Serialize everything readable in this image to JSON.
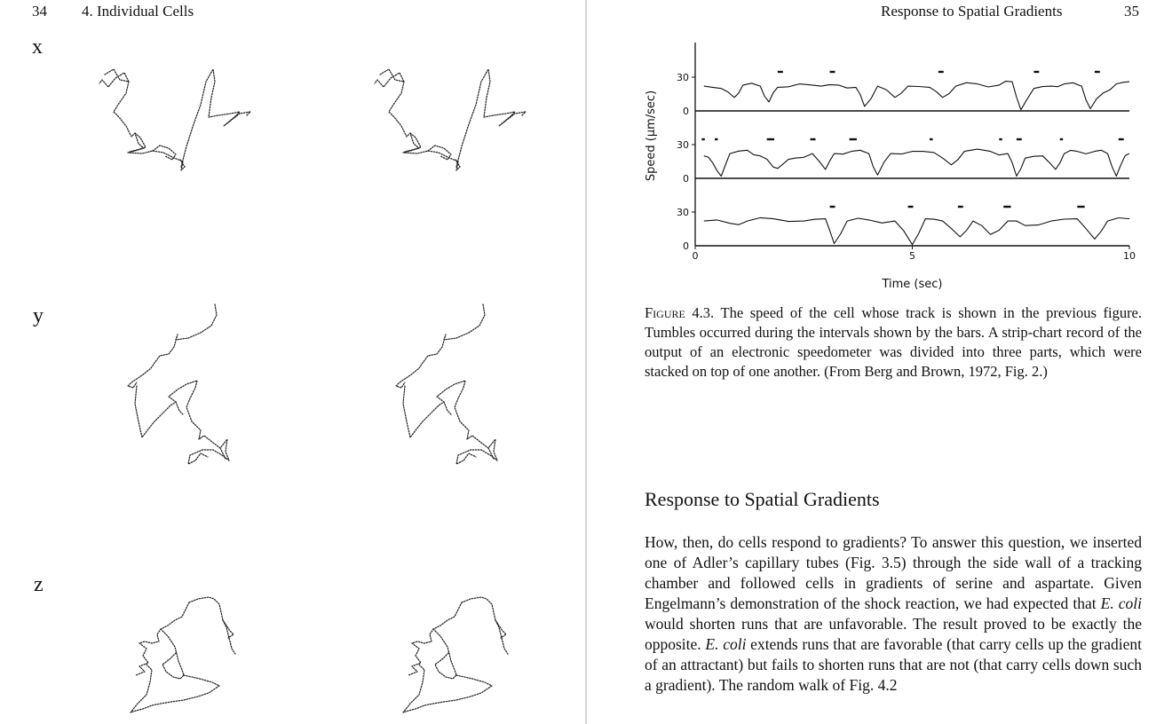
{
  "left_page": {
    "page_number": "34",
    "running_head": "4. Individual Cells",
    "axis_labels": {
      "x": "x",
      "y": "y",
      "z": "z"
    }
  },
  "right_page": {
    "running_head": "Response to Spatial Gradients",
    "page_number": "35",
    "figure": {
      "label": "Figure 4.3.",
      "caption": "The speed of the cell whose track is shown in the previous figure. Tumbles occurred during the intervals shown by the bars. A strip-chart record of the output of an electronic speedometer was divided into three parts, which were stacked on top of one another. (From Berg and Brown, 1972, Fig. 2.)"
    },
    "section": {
      "heading": "Response to Spatial Gradients",
      "body": {
        "p1": "How, then, do cells respond to gradients? To answer this question, we inserted one of Adler’s capillary tubes (Fig. 3.5) through the side wall of a tracking chamber and followed cells in gradients of serine and aspartate. Given Engelmann’s demonstration of the shock reaction, we had expected that ",
        "em1": "E. coli",
        "p2": " would shorten runs that are unfavorable. The result proved to be exactly the opposite. ",
        "em2": "E. coli",
        "p3": " extends runs that are favorable (that carry cells up the gradient of an attractant) but fails to shorten runs that are not (that carry cells down such a gradient). The random walk of Fig. 4.2"
      }
    }
  },
  "chart_data": {
    "type": "line",
    "xlabel": "Time (sec)",
    "ylabel": "Speed (µm/sec)",
    "xlim": [
      0,
      10
    ],
    "x_ticks": [
      "0",
      "5",
      "10"
    ],
    "y_ticks": [
      "0",
      "30"
    ],
    "series": [
      {
        "panel": 1,
        "speed_points": [
          [
            0.2,
            22
          ],
          [
            0.6,
            20
          ],
          [
            0.9,
            12
          ],
          [
            1.1,
            23
          ],
          [
            1.5,
            22
          ],
          [
            1.7,
            8
          ],
          [
            1.9,
            21
          ],
          [
            2.4,
            24
          ],
          [
            2.9,
            22
          ],
          [
            3.3,
            23
          ],
          [
            3.7,
            21
          ],
          [
            3.9,
            4
          ],
          [
            4.2,
            22
          ],
          [
            4.6,
            12
          ],
          [
            4.9,
            22
          ],
          [
            5.4,
            21
          ],
          [
            5.7,
            12
          ],
          [
            6.0,
            22
          ],
          [
            6.5,
            24
          ],
          [
            7.0,
            23
          ],
          [
            7.3,
            26
          ],
          [
            7.5,
            1
          ],
          [
            7.8,
            20
          ],
          [
            8.2,
            22
          ],
          [
            8.5,
            24
          ],
          [
            8.9,
            22
          ],
          [
            9.1,
            2
          ],
          [
            9.4,
            16
          ],
          [
            9.7,
            24
          ],
          [
            10,
            26
          ]
        ],
        "tumble_intervals": [
          [
            1.9,
            2.0
          ],
          [
            3.1,
            3.2
          ],
          [
            5.6,
            5.7
          ],
          [
            7.8,
            7.9
          ],
          [
            9.2,
            9.3
          ]
        ]
      },
      {
        "panel": 2,
        "speed_points": [
          [
            0.2,
            20
          ],
          [
            0.4,
            14
          ],
          [
            0.6,
            2
          ],
          [
            0.8,
            22
          ],
          [
            1.2,
            25
          ],
          [
            1.5,
            20
          ],
          [
            1.8,
            10
          ],
          [
            2.0,
            12
          ],
          [
            2.3,
            18
          ],
          [
            2.7,
            22
          ],
          [
            3.0,
            8
          ],
          [
            3.2,
            22
          ],
          [
            3.6,
            24
          ],
          [
            4.0,
            22
          ],
          [
            4.2,
            3
          ],
          [
            4.5,
            22
          ],
          [
            5.0,
            24
          ],
          [
            5.5,
            23
          ],
          [
            5.9,
            12
          ],
          [
            6.2,
            24
          ],
          [
            6.8,
            24
          ],
          [
            7.2,
            22
          ],
          [
            7.4,
            2
          ],
          [
            7.6,
            18
          ],
          [
            8.0,
            20
          ],
          [
            8.3,
            8
          ],
          [
            8.5,
            22
          ],
          [
            8.8,
            24
          ],
          [
            9.2,
            24
          ],
          [
            9.5,
            22
          ],
          [
            9.7,
            2
          ],
          [
            9.9,
            20
          ],
          [
            10,
            22
          ]
        ],
        "tumble_intervals": [
          [
            0.15,
            0.2
          ],
          [
            0.45,
            0.5
          ],
          [
            1.65,
            1.8
          ],
          [
            2.65,
            2.75
          ],
          [
            3.55,
            3.7
          ],
          [
            5.4,
            5.45
          ],
          [
            7.0,
            7.05
          ],
          [
            7.4,
            7.5
          ],
          [
            8.4,
            8.45
          ],
          [
            9.75,
            9.85
          ]
        ]
      },
      {
        "panel": 3,
        "speed_points": [
          [
            0.2,
            22
          ],
          [
            0.8,
            20
          ],
          [
            1.2,
            22
          ],
          [
            1.8,
            24
          ],
          [
            2.5,
            22
          ],
          [
            3.0,
            24
          ],
          [
            3.2,
            2
          ],
          [
            3.5,
            22
          ],
          [
            4.0,
            23
          ],
          [
            4.6,
            22
          ],
          [
            5.0,
            1
          ],
          [
            5.3,
            24
          ],
          [
            5.7,
            22
          ],
          [
            6.1,
            8
          ],
          [
            6.4,
            22
          ],
          [
            6.8,
            10
          ],
          [
            7.2,
            22
          ],
          [
            7.6,
            18
          ],
          [
            8.2,
            22
          ],
          [
            8.8,
            24
          ],
          [
            9.2,
            6
          ],
          [
            9.5,
            22
          ],
          [
            10,
            24
          ]
        ],
        "tumble_intervals": [
          [
            3.1,
            3.2
          ],
          [
            4.9,
            5.0
          ],
          [
            6.05,
            6.15
          ],
          [
            7.1,
            7.25
          ],
          [
            8.8,
            8.95
          ]
        ]
      }
    ]
  }
}
